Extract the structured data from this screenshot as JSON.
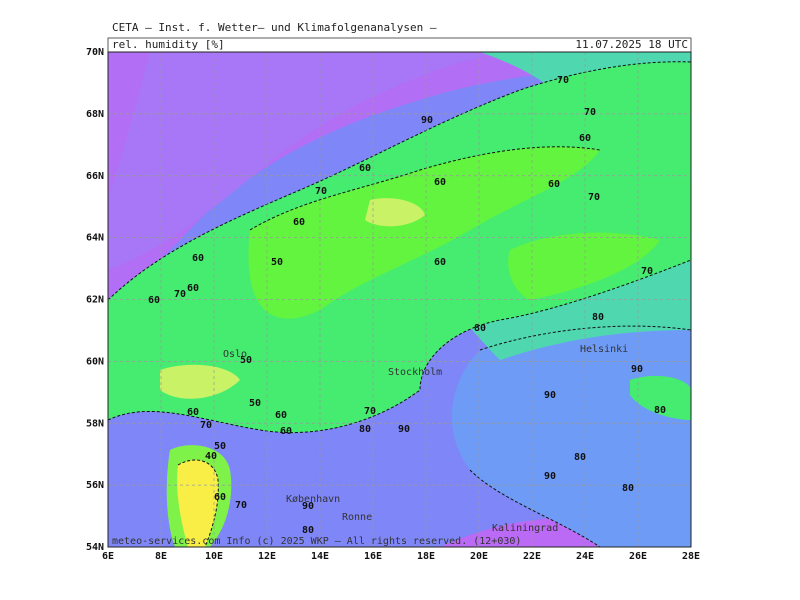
{
  "header": {
    "title": "CETA — Inst. f. Wetter— und Klimafolgenanalysen —",
    "parameter": "rel. humidity [%]",
    "valid_time": "11.07.2025 18 UTC"
  },
  "axes": {
    "lat_labels": [
      "54N",
      "56N",
      "58N",
      "60N",
      "62N",
      "64N",
      "66N",
      "68N",
      "70N"
    ],
    "lon_labels": [
      "6E",
      "8E",
      "10E",
      "12E",
      "14E",
      "16E",
      "18E",
      "20E",
      "22E",
      "24E",
      "26E",
      "28E"
    ]
  },
  "contour_labels": [
    "70",
    "70",
    "90",
    "60",
    "60",
    "60",
    "60",
    "70",
    "70",
    "60",
    "60",
    "50",
    "60",
    "60",
    "70",
    "60",
    "70",
    "80",
    "80",
    "50",
    "90",
    "90",
    "50",
    "60",
    "70",
    "60",
    "70",
    "80",
    "90",
    "60",
    "80",
    "50",
    "40",
    "80",
    "90",
    "80",
    "60",
    "70",
    "90",
    "80"
  ],
  "places": [
    "Oslo",
    "Helsinki",
    "Stockholm",
    "København",
    "Ronne",
    "Kaliningrad"
  ],
  "footer": "meteo-services.com Info (c) 2025 WKP – All rights reserved. (12+030)"
}
